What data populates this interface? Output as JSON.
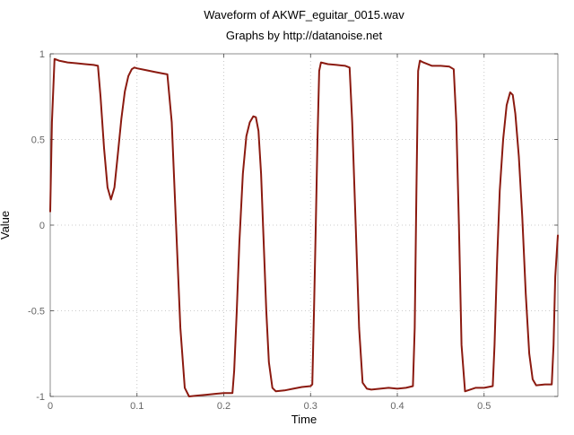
{
  "chart_data": {
    "type": "line",
    "title": "Waveform of AKWF_eguitar_0015.wav",
    "subtitle": "Graphs by http://datanoise.net",
    "xlabel": "Time",
    "ylabel": "Value",
    "xlim": [
      0,
      0.585
    ],
    "ylim": [
      -1,
      1
    ],
    "x_ticks": [
      0,
      0.1,
      0.2,
      0.3,
      0.4,
      0.5
    ],
    "x_tick_labels": [
      "0",
      "0.1",
      "0.2",
      "0.3",
      "0.4",
      "0.5"
    ],
    "y_ticks": [
      -1,
      -0.5,
      0,
      0.5,
      1
    ],
    "y_tick_labels": [
      "-1",
      "-0.5",
      "0",
      "0.5",
      "1"
    ],
    "grid": true,
    "line_color": "#8b1a10",
    "series": [
      {
        "x": [
          0,
          0.002,
          0.005,
          0.01,
          0.02,
          0.03,
          0.04,
          0.05,
          0.055,
          0.058,
          0.062,
          0.066,
          0.07,
          0.074,
          0.078,
          0.082,
          0.086,
          0.09,
          0.094,
          0.097,
          0.1,
          0.11,
          0.12,
          0.13,
          0.135,
          0.14,
          0.145,
          0.15,
          0.155,
          0.16,
          0.17,
          0.18,
          0.19,
          0.2,
          0.21,
          0.212,
          0.215,
          0.218,
          0.222,
          0.226,
          0.23,
          0.234,
          0.237,
          0.24,
          0.243,
          0.246,
          0.249,
          0.252,
          0.256,
          0.26,
          0.27,
          0.28,
          0.29,
          0.3,
          0.302,
          0.304,
          0.306,
          0.308,
          0.31,
          0.312,
          0.32,
          0.33,
          0.34,
          0.345,
          0.348,
          0.352,
          0.356,
          0.36,
          0.365,
          0.37,
          0.38,
          0.39,
          0.4,
          0.41,
          0.418,
          0.42,
          0.422,
          0.424,
          0.426,
          0.43,
          0.44,
          0.45,
          0.46,
          0.465,
          0.468,
          0.471,
          0.474,
          0.478,
          0.49,
          0.5,
          0.51,
          0.512,
          0.515,
          0.518,
          0.522,
          0.526,
          0.53,
          0.533,
          0.536,
          0.54,
          0.544,
          0.548,
          0.552,
          0.556,
          0.56,
          0.57,
          0.578,
          0.58,
          0.582,
          0.585
        ],
        "y": [
          0.08,
          0.6,
          0.97,
          0.96,
          0.95,
          0.945,
          0.94,
          0.935,
          0.93,
          0.75,
          0.45,
          0.22,
          0.15,
          0.22,
          0.42,
          0.62,
          0.78,
          0.87,
          0.91,
          0.92,
          0.915,
          0.905,
          0.895,
          0.885,
          0.88,
          0.6,
          0.0,
          -0.6,
          -0.95,
          -1.0,
          -0.995,
          -0.99,
          -0.985,
          -0.98,
          -0.98,
          -0.85,
          -0.5,
          -0.1,
          0.3,
          0.52,
          0.6,
          0.635,
          0.63,
          0.55,
          0.3,
          -0.1,
          -0.5,
          -0.8,
          -0.95,
          -0.97,
          -0.965,
          -0.955,
          -0.945,
          -0.94,
          -0.93,
          -0.5,
          0.0,
          0.5,
          0.9,
          0.95,
          0.94,
          0.935,
          0.93,
          0.92,
          0.6,
          0.0,
          -0.6,
          -0.92,
          -0.955,
          -0.96,
          -0.955,
          -0.95,
          -0.955,
          -0.95,
          -0.94,
          -0.6,
          0.2,
          0.9,
          0.96,
          0.95,
          0.93,
          0.93,
          0.925,
          0.91,
          0.6,
          0.0,
          -0.7,
          -0.97,
          -0.95,
          -0.95,
          -0.94,
          -0.7,
          -0.2,
          0.2,
          0.5,
          0.7,
          0.775,
          0.76,
          0.65,
          0.4,
          0.05,
          -0.4,
          -0.75,
          -0.9,
          -0.935,
          -0.93,
          -0.93,
          -0.7,
          -0.3,
          -0.06
        ]
      }
    ]
  }
}
